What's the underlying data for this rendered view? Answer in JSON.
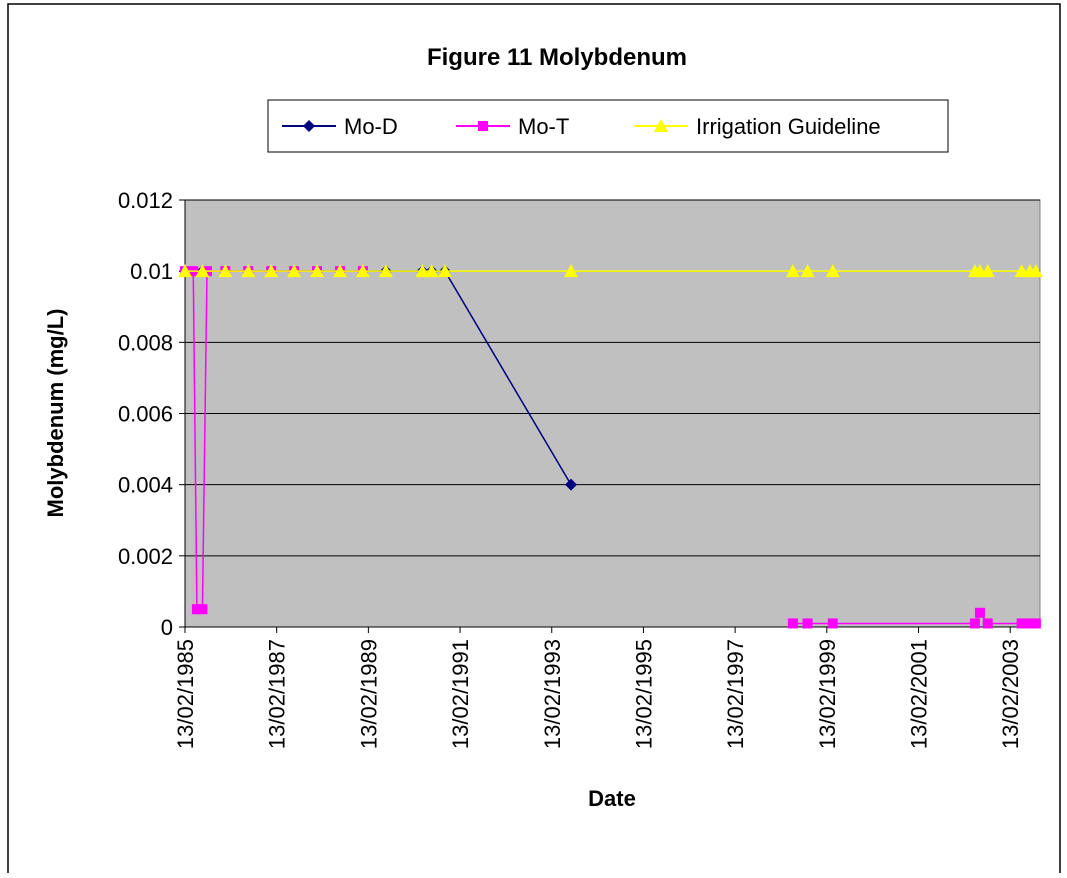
{
  "chart_data": {
    "type": "line",
    "title": "Figure 11 Molybdenum",
    "x_label": "Date",
    "y_label": "Molybdenum (mg/L)",
    "xlim": [
      1985.12,
      2003.77
    ],
    "xticks": [
      {
        "value": 1985.12,
        "label": "13/02/1985"
      },
      {
        "value": 1987.12,
        "label": "13/02/1987"
      },
      {
        "value": 1989.12,
        "label": "13/02/1989"
      },
      {
        "value": 1991.12,
        "label": "13/02/1991"
      },
      {
        "value": 1993.12,
        "label": "13/02/1993"
      },
      {
        "value": 1995.12,
        "label": "13/02/1995"
      },
      {
        "value": 1997.12,
        "label": "13/02/1997"
      },
      {
        "value": 1999.12,
        "label": "13/02/1999"
      },
      {
        "value": 2001.12,
        "label": "13/02/2001"
      },
      {
        "value": 2003.12,
        "label": "13/02/2003"
      }
    ],
    "ylim": [
      0,
      0.012
    ],
    "yticks": [
      0,
      0.002,
      0.004,
      0.006,
      0.008,
      0.01,
      0.012
    ],
    "grid": true,
    "plot_background": "#c0c0c0",
    "series": [
      {
        "name": "Mo-D",
        "color": "#000080",
        "marker": "diamond",
        "x": [
          1985.12,
          1985.5,
          1986.0,
          1986.5,
          1987.0,
          1987.5,
          1988.0,
          1988.5,
          1989.0,
          1989.5,
          1990.3,
          1990.5,
          1990.79,
          1993.54
        ],
        "values": [
          0.01,
          0.01,
          0.01,
          0.01,
          0.01,
          0.01,
          0.01,
          0.01,
          0.01,
          0.01,
          0.01,
          0.01,
          0.01,
          0.004
        ]
      },
      {
        "name": "Mo-T",
        "color": "#ff00ff",
        "marker": "square",
        "x": [
          1985.12,
          1985.3,
          1985.38,
          1985.5,
          1985.6,
          1986.0,
          1986.5,
          1987.0,
          1987.5,
          1988.0,
          1988.5,
          1989.0,
          1993.54,
          1998.38,
          1998.7,
          1999.25,
          2002.35,
          2002.46,
          2002.63,
          2003.37,
          2003.55,
          2003.68
        ],
        "values": [
          0.01,
          0.01,
          0.0005,
          0.0005,
          0.01,
          0.01,
          0.01,
          0.01,
          0.01,
          0.01,
          0.01,
          0.01,
          null,
          0.0001,
          0.0001,
          0.0001,
          0.0001,
          0.0004,
          0.0001,
          0.0001,
          0.0001,
          0.0001
        ]
      },
      {
        "name": "Irrigation Guideline",
        "color": "#ffff00",
        "marker": "triangle",
        "x": [
          1985.12,
          1985.5,
          1986.0,
          1986.5,
          1987.0,
          1987.5,
          1988.0,
          1988.5,
          1989.0,
          1989.5,
          1990.3,
          1990.5,
          1990.79,
          1993.54,
          1998.38,
          1998.7,
          1999.25,
          2002.35,
          2002.46,
          2002.63,
          2003.37,
          2003.55,
          2003.68
        ],
        "values": [
          0.01,
          0.01,
          0.01,
          0.01,
          0.01,
          0.01,
          0.01,
          0.01,
          0.01,
          0.01,
          0.01,
          0.01,
          0.01,
          0.01,
          0.01,
          0.01,
          0.01,
          0.01,
          0.01,
          0.01,
          0.01,
          0.01,
          0.01
        ]
      }
    ]
  }
}
